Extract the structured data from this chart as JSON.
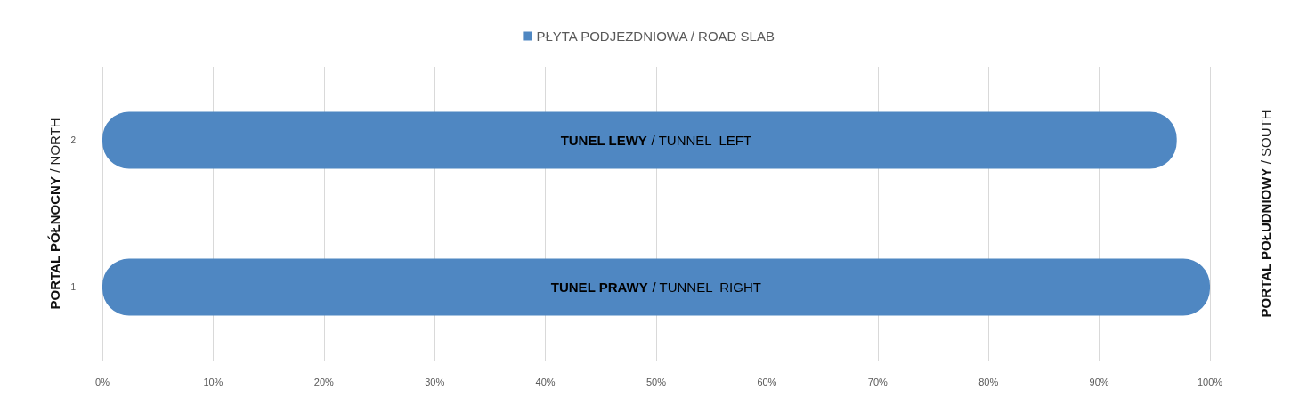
{
  "chart_data": {
    "type": "bar",
    "orientation": "horizontal",
    "ylabel": "PORTAL PÓŁNOCNY / NORTH",
    "y2label": "PORTAL POŁUDNIOWY / SOUTH",
    "categories": [
      "2",
      "1"
    ],
    "series": [
      {
        "name": "PŁYTA PODJEZDNIOWA / ROAD SLAB",
        "color": "#4f87c2",
        "values": [
          97,
          100
        ]
      }
    ],
    "xlim": [
      0,
      100
    ],
    "xticks": [
      {
        "value": 0,
        "label": "0%"
      },
      {
        "value": 10,
        "label": "10%"
      },
      {
        "value": 20,
        "label": "20%"
      },
      {
        "value": 30,
        "label": "30%"
      },
      {
        "value": 40,
        "label": "40%"
      },
      {
        "value": 50,
        "label": "50%"
      },
      {
        "value": 60,
        "label": "60%"
      },
      {
        "value": 70,
        "label": "70%"
      },
      {
        "value": 80,
        "label": "80%"
      },
      {
        "value": 90,
        "label": "90%"
      },
      {
        "value": 100,
        "label": "100%"
      }
    ],
    "annotations": [
      "TUNEL LEWY / TUNNEL  LEFT",
      "TUNEL PRAWY / TUNNEL  RIGHT"
    ],
    "grid": "x",
    "legend": "top"
  }
}
